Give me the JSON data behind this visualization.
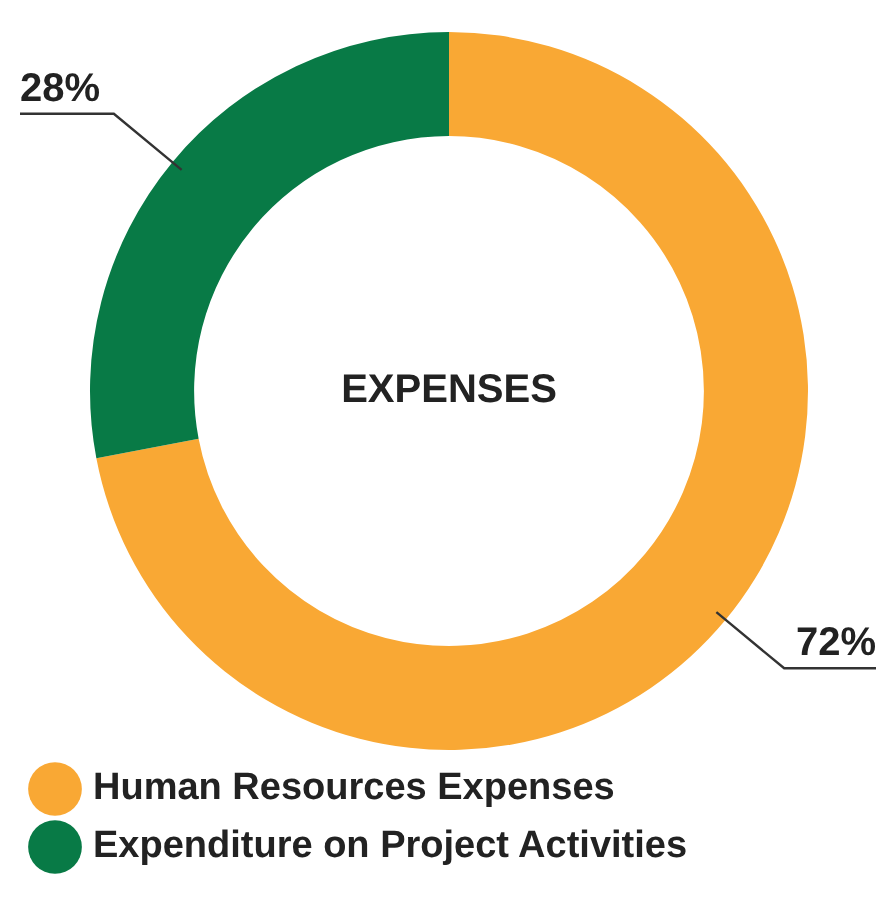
{
  "chart_data": {
    "type": "donut",
    "title": "EXPENSES",
    "categories": [
      "Human Resources Expenses",
      "Expenditure on Project Activities"
    ],
    "values": [
      72,
      28
    ],
    "colors": [
      "#f9a834",
      "#087a46"
    ],
    "value_labels": [
      "72%",
      "28%"
    ],
    "legend": "bottom left"
  }
}
